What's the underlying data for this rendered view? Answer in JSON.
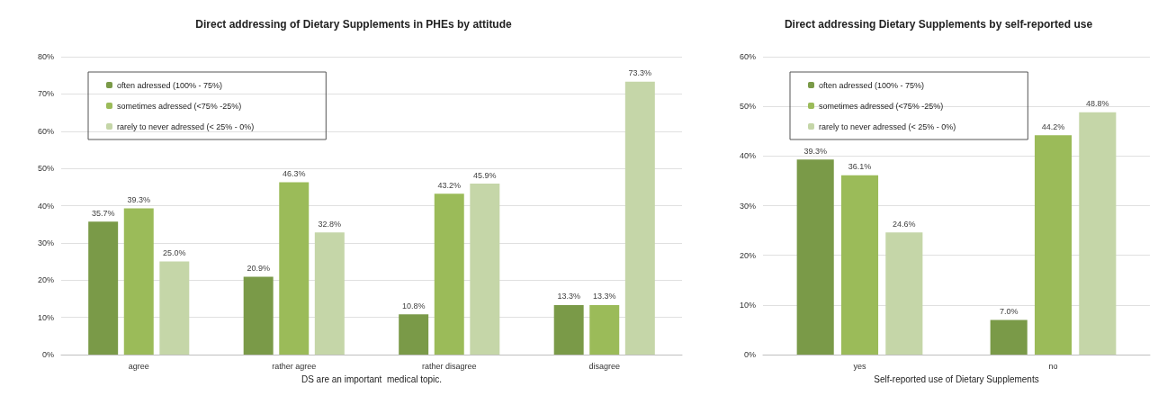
{
  "chart_data": [
    {
      "type": "bar",
      "title": "Direct addressing of Dietary Supplements in PHEs by attitude",
      "xlabel": "DS are an important  medical topic.",
      "categories": [
        "agree",
        "rather agree",
        "rather disagree",
        "disagree"
      ],
      "series": [
        {
          "name": "often adressed (100% - 75%)",
          "color": "#7a9a48",
          "values": [
            35.7,
            20.9,
            10.8,
            13.3
          ],
          "value_labels": [
            "35.7%",
            "20.9%",
            "10.8%",
            "13.3%"
          ]
        },
        {
          "name": "sometimes adressed (<75% -25%)",
          "color": "#9bbb59",
          "values": [
            39.3,
            46.3,
            43.2,
            13.3
          ],
          "value_labels": [
            "39.3%",
            "46.3%",
            "43.2%",
            "13.3%"
          ]
        },
        {
          "name": "rarely to never adressed (< 25% - 0%)",
          "color": "#c5d6a8",
          "values": [
            25.0,
            32.8,
            45.9,
            73.3
          ],
          "value_labels": [
            "25.0%",
            "32.8%",
            "45.9%",
            "73.3%"
          ]
        }
      ],
      "ylim": [
        0,
        80
      ],
      "yticks": [
        {
          "value": 0,
          "label": "0%"
        },
        {
          "value": 10,
          "label": "10%"
        },
        {
          "value": 20,
          "label": "20%"
        },
        {
          "value": 30,
          "label": "30%"
        },
        {
          "value": 40,
          "label": "40%"
        },
        {
          "value": 50,
          "label": "50%"
        },
        {
          "value": 60,
          "label": "60%"
        },
        {
          "value": 70,
          "label": "70%"
        },
        {
          "value": 80,
          "label": "80%"
        }
      ],
      "grid": "y",
      "legend": "top left"
    },
    {
      "type": "bar",
      "title": "Direct addressing Dietary Supplements by self-reported use",
      "xlabel": "Self-reported use of Dietary Supplements",
      "categories": [
        "yes",
        "no"
      ],
      "series": [
        {
          "name": "often adressed (100% - 75%)",
          "color": "#7a9a48",
          "values": [
            39.3,
            7.0
          ],
          "value_labels": [
            "39.3%",
            "7.0%"
          ]
        },
        {
          "name": "sometimes adressed (<75% -25%)",
          "color": "#9bbb59",
          "values": [
            36.1,
            44.2
          ],
          "value_labels": [
            "36.1%",
            "44.2%"
          ]
        },
        {
          "name": "rarely to never adressed (< 25% - 0%)",
          "color": "#c5d6a8",
          "values": [
            24.6,
            48.8
          ],
          "value_labels": [
            "24.6%",
            "48.8%"
          ]
        }
      ],
      "ylim": [
        0,
        60
      ],
      "yticks": [
        {
          "value": 0,
          "label": "0%"
        },
        {
          "value": 10,
          "label": "10%"
        },
        {
          "value": 20,
          "label": "20%"
        },
        {
          "value": 30,
          "label": "30%"
        },
        {
          "value": 40,
          "label": "40%"
        },
        {
          "value": 50,
          "label": "50%"
        },
        {
          "value": 60,
          "label": "60%"
        }
      ],
      "grid": "y",
      "legend": "top left"
    }
  ]
}
